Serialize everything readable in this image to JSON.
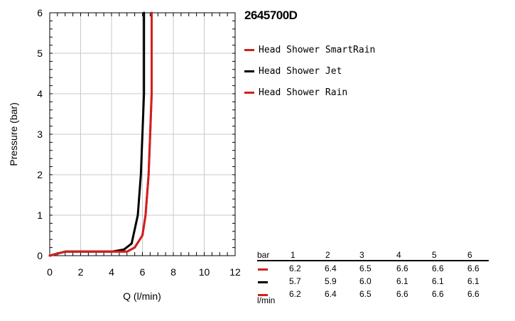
{
  "model": "2645700D",
  "colors": {
    "red": "#d0201e",
    "black": "#000000",
    "grid": "#c8c8c8"
  },
  "chart_data": {
    "type": "line",
    "title": "2645700D",
    "xlabel": "Q (l/min)",
    "ylabel": "Pressure (bar)",
    "xlim": [
      0,
      12
    ],
    "ylim": [
      0,
      6
    ],
    "xticks": [
      0,
      2,
      4,
      6,
      8,
      10,
      12
    ],
    "yticks": [
      0,
      1,
      2,
      3,
      4,
      5,
      6
    ],
    "grid": true,
    "legend_position": "right",
    "series": [
      {
        "name": "Head Shower SmartRain",
        "color": "#d0201e",
        "points": [
          [
            0,
            0
          ],
          [
            0.5,
            0.05
          ],
          [
            1,
            0.1
          ],
          [
            2,
            0.1
          ],
          [
            3,
            0.1
          ],
          [
            4,
            0.1
          ],
          [
            5,
            0.1
          ],
          [
            5.5,
            0.2
          ],
          [
            6,
            0.5
          ],
          [
            6.2,
            1
          ],
          [
            6.4,
            2
          ],
          [
            6.5,
            3
          ],
          [
            6.6,
            4
          ],
          [
            6.6,
            5
          ],
          [
            6.6,
            6
          ]
        ]
      },
      {
        "name": "Head Shower Jet",
        "color": "#000000",
        "points": [
          [
            0,
            0
          ],
          [
            0.5,
            0.05
          ],
          [
            1,
            0.1
          ],
          [
            2,
            0.1
          ],
          [
            3,
            0.1
          ],
          [
            4,
            0.1
          ],
          [
            4.8,
            0.15
          ],
          [
            5.3,
            0.3
          ],
          [
            5.7,
            1
          ],
          [
            5.9,
            2
          ],
          [
            6.0,
            3
          ],
          [
            6.1,
            4
          ],
          [
            6.1,
            5
          ],
          [
            6.1,
            6
          ]
        ]
      },
      {
        "name": "Head Shower Rain",
        "color": "#d0201e",
        "points": [
          [
            0,
            0
          ],
          [
            0.5,
            0.05
          ],
          [
            1,
            0.1
          ],
          [
            2,
            0.1
          ],
          [
            3,
            0.1
          ],
          [
            4,
            0.1
          ],
          [
            5,
            0.1
          ],
          [
            5.5,
            0.2
          ],
          [
            6,
            0.5
          ],
          [
            6.2,
            1
          ],
          [
            6.4,
            2
          ],
          [
            6.5,
            3
          ],
          [
            6.6,
            4
          ],
          [
            6.6,
            5
          ],
          [
            6.6,
            6
          ]
        ]
      }
    ]
  },
  "flow_table": {
    "header_label": "bar",
    "unit_label": "l/min",
    "pressures": [
      "1",
      "2",
      "3",
      "4",
      "5",
      "6"
    ],
    "rows": [
      {
        "color": "#d0201e",
        "values": [
          "6.2",
          "6.4",
          "6.5",
          "6.6",
          "6.6",
          "6.6"
        ]
      },
      {
        "color": "#000000",
        "values": [
          "5.7",
          "5.9",
          "6.0",
          "6.1",
          "6.1",
          "6.1"
        ]
      },
      {
        "color": "#d0201e",
        "values": [
          "6.2",
          "6.4",
          "6.5",
          "6.6",
          "6.6",
          "6.6"
        ]
      }
    ]
  }
}
